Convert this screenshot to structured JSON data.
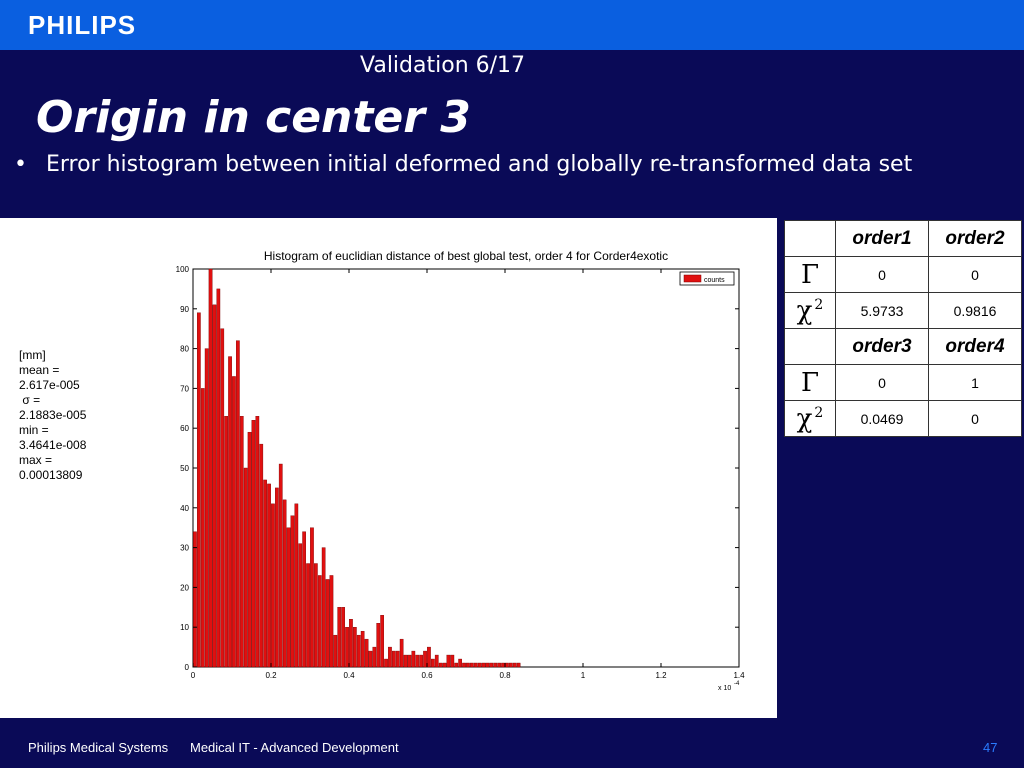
{
  "header": {
    "brand": "PHILIPS",
    "subtitle": "Validation  6/17"
  },
  "slide": {
    "title": "Origin in center  3",
    "bullet_marker": "•",
    "bullet": "Error histogram between initial deformed and globally re-transformed data set"
  },
  "stats": [
    "[mm]",
    "mean =",
    "2.617e-005",
    " σ =",
    "2.1883e-005",
    "min =",
    "3.4641e-008",
    "max =",
    "0.00013809"
  ],
  "chart_data": {
    "type": "bar",
    "title": "Histogram of euclidian distance of best global test, order 4 for Corder4exotic",
    "legend": [
      "counts"
    ],
    "legend_position": "top-right",
    "xlim": [
      0,
      1.4
    ],
    "ylim": [
      0,
      100
    ],
    "x_ticks": [
      "0",
      "0.2",
      "0.4",
      "0.6",
      "0.8",
      "1",
      "1.2",
      "1.4"
    ],
    "y_ticks": [
      "0",
      "10",
      "20",
      "30",
      "40",
      "50",
      "60",
      "70",
      "80",
      "90",
      "100"
    ],
    "x_multiplier": "x 10",
    "x_multiplier_exp": "-4",
    "bar_color": "#e01010",
    "bin_width": 0.01,
    "values": [
      34,
      89,
      70,
      80,
      100,
      91,
      95,
      85,
      63,
      78,
      73,
      82,
      63,
      50,
      59,
      62,
      63,
      56,
      47,
      46,
      41,
      45,
      51,
      42,
      35,
      38,
      41,
      31,
      34,
      26,
      35,
      26,
      23,
      30,
      22,
      23,
      8,
      15,
      15,
      10,
      12,
      10,
      8,
      9,
      7,
      4,
      5,
      11,
      13,
      2,
      5,
      4,
      4,
      7,
      3,
      3,
      4,
      3,
      3,
      4,
      5,
      2,
      3,
      1,
      1,
      3,
      3,
      1,
      2,
      1,
      1,
      1,
      1,
      1,
      1,
      1,
      1,
      1,
      1,
      1,
      1,
      1,
      1,
      1
    ]
  },
  "table": {
    "rows": [
      {
        "label": "",
        "values": [
          "order1",
          "order2"
        ],
        "header": true
      },
      {
        "label": "Γ",
        "sup": "",
        "values": [
          "0",
          "0"
        ]
      },
      {
        "label": "χ",
        "sup": "2",
        "values": [
          "5.9733",
          "0.9816"
        ]
      },
      {
        "label": "",
        "values": [
          "order3",
          "order4"
        ],
        "header": true
      },
      {
        "label": "Γ",
        "sup": "",
        "values": [
          "0",
          "1"
        ]
      },
      {
        "label": "χ",
        "sup": "2",
        "values": [
          "0.0469",
          "0"
        ]
      }
    ]
  },
  "footer": {
    "company": "Philips Medical Systems",
    "department": "Medical IT - Advanced Development",
    "page": "47"
  },
  "colors": {
    "topbar": "#0a5fe0",
    "background": "#0a0a57",
    "page_number": "#2a7bff"
  }
}
